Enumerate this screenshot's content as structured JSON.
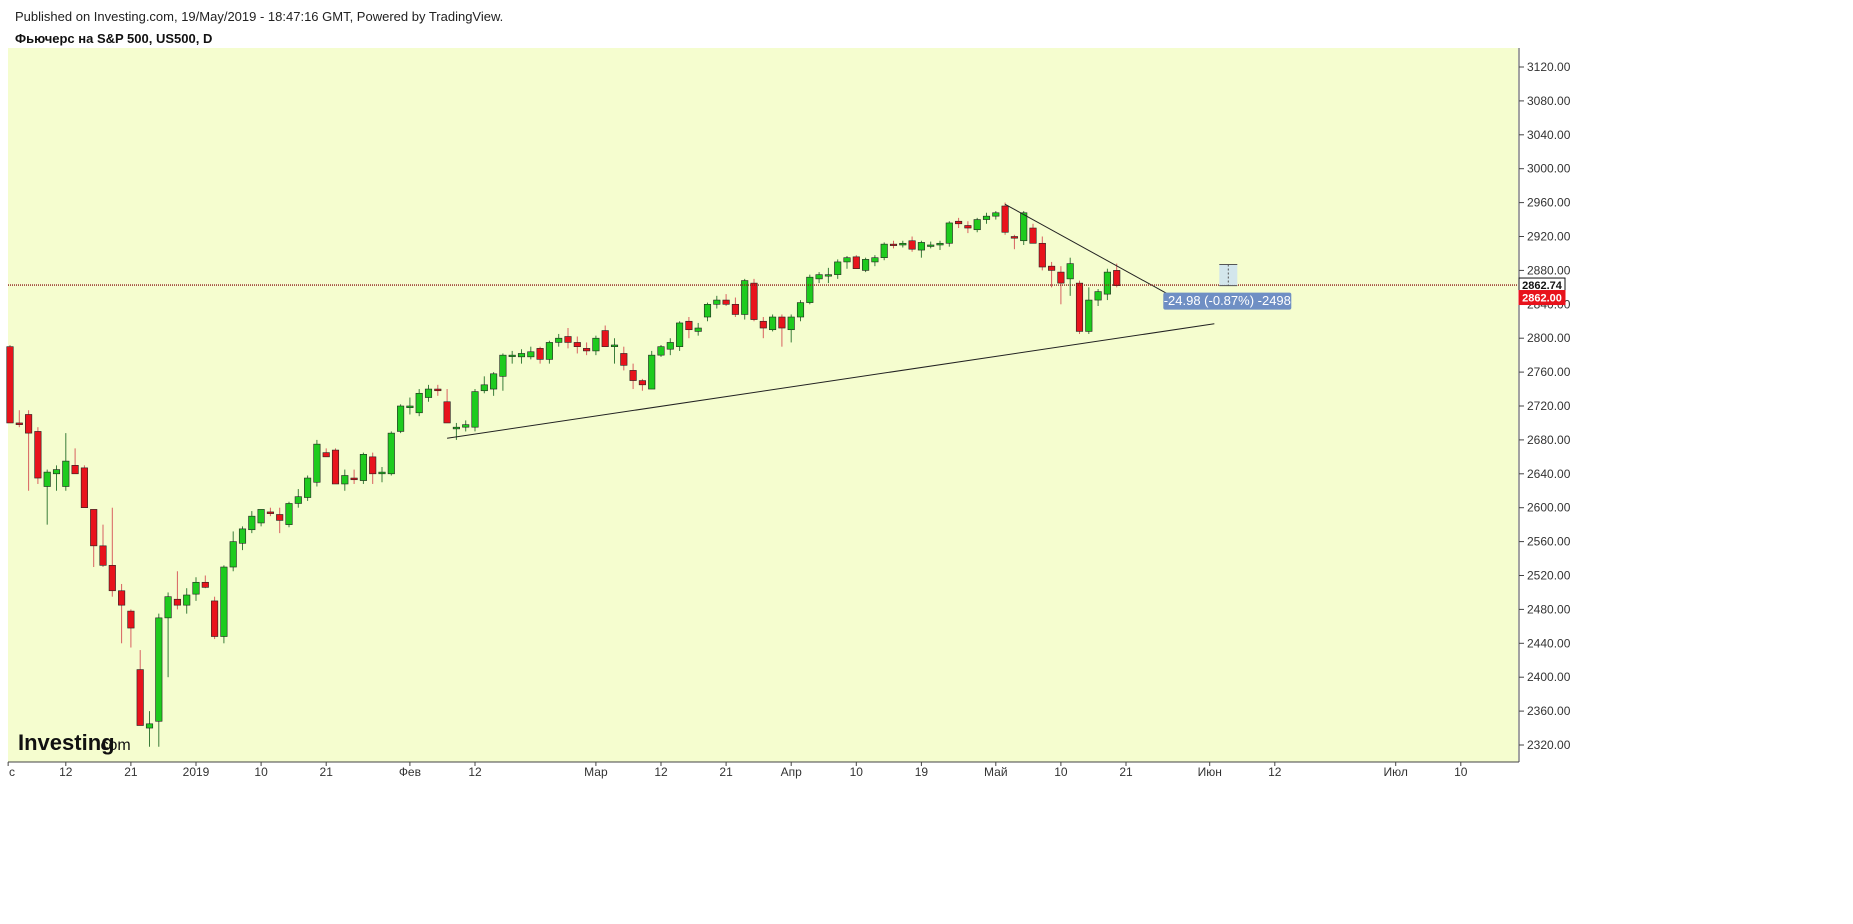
{
  "header": {
    "published": "Published on Investing.com, 19/May/2019 - 18:47:16 GMT, Powered by TradingView.",
    "title": "Фьючерс на S&P 500, US500, D"
  },
  "logo": {
    "main": "Investing",
    "suffix": ".com"
  },
  "colors": {
    "background": "#f5fdcf",
    "up": "#1ecb1e",
    "down": "#e8131c",
    "priceLine": "#8b1a1a",
    "measureLabel": "#6f8fc4"
  },
  "chart_data": {
    "type": "candlestick",
    "grid": false,
    "legend": "none",
    "ylim": [
      2305,
      3135
    ],
    "y_ticks": [
      3120,
      3080,
      3040,
      3000,
      2960,
      2920,
      2880,
      2840,
      2800,
      2760,
      2720,
      2680,
      2640,
      2600,
      2560,
      2520,
      2480,
      2440,
      2400,
      2360,
      2320
    ],
    "y_tick_labels": [
      "3120.00",
      "3080.00",
      "3040.00",
      "3000.00",
      "2960.00",
      "2920.00",
      "2880.00",
      "2840.00",
      "2800.00",
      "2760.00",
      "2720.00",
      "2680.00",
      "2640.00",
      "2600.00",
      "2560.00",
      "2520.00",
      "2480.00",
      "2440.00",
      "2400.00",
      "2360.00",
      "2320.00"
    ],
    "x_tick_labels": [
      {
        "label": "c",
        "bar": -0.2
      },
      {
        "label": "12",
        "bar": 6
      },
      {
        "label": "21",
        "bar": 13
      },
      {
        "label": "2019",
        "bar": 20
      },
      {
        "label": "10",
        "bar": 27
      },
      {
        "label": "21",
        "bar": 34
      },
      {
        "label": "Фев",
        "bar": 43
      },
      {
        "label": "12",
        "bar": 50
      },
      {
        "label": "Мар",
        "bar": 63
      },
      {
        "label": "12",
        "bar": 70
      },
      {
        "label": "21",
        "bar": 77
      },
      {
        "label": "Апр",
        "bar": 84
      },
      {
        "label": "10",
        "bar": 91
      },
      {
        "label": "19",
        "bar": 98
      },
      {
        "label": "Май",
        "bar": 106
      },
      {
        "label": "10",
        "bar": 113
      },
      {
        "label": "21",
        "bar": 120
      },
      {
        "label": "Июн",
        "bar": 129
      },
      {
        "label": "12",
        "bar": 136
      },
      {
        "label": "Июл",
        "bar": 149
      },
      {
        "label": "10",
        "bar": 156
      }
    ],
    "bars_per_day_estimate": "daily",
    "ohlc": [
      [
        2790,
        2792,
        2700,
        2700
      ],
      [
        2700,
        2715,
        2695,
        2698
      ],
      [
        2710,
        2715,
        2620,
        2688
      ],
      [
        2690,
        2695,
        2628,
        2635
      ],
      [
        2625,
        2645,
        2580,
        2642
      ],
      [
        2640,
        2650,
        2620,
        2645
      ],
      [
        2625,
        2688,
        2620,
        2655
      ],
      [
        2650,
        2670,
        2640,
        2640
      ],
      [
        2647,
        2650,
        2600,
        2600
      ],
      [
        2598,
        2598,
        2530,
        2555
      ],
      [
        2555,
        2580,
        2530,
        2532
      ],
      [
        2532,
        2600,
        2495,
        2502
      ],
      [
        2502,
        2510,
        2440,
        2485
      ],
      [
        2478,
        2480,
        2435,
        2458
      ],
      [
        2409,
        2432,
        2343,
        2343
      ],
      [
        2340,
        2360,
        2318,
        2345
      ],
      [
        2348,
        2475,
        2318,
        2470
      ],
      [
        2470,
        2500,
        2400,
        2495
      ],
      [
        2492,
        2525,
        2480,
        2485
      ],
      [
        2485,
        2505,
        2475,
        2497
      ],
      [
        2498,
        2518,
        2490,
        2512
      ],
      [
        2512,
        2520,
        2505,
        2506
      ],
      [
        2490,
        2495,
        2445,
        2448
      ],
      [
        2448,
        2532,
        2440,
        2530
      ],
      [
        2530,
        2572,
        2525,
        2560
      ],
      [
        2558,
        2578,
        2550,
        2575
      ],
      [
        2574,
        2596,
        2570,
        2590
      ],
      [
        2582,
        2598,
        2578,
        2598
      ],
      [
        2595,
        2600,
        2590,
        2593
      ],
      [
        2592,
        2600,
        2570,
        2585
      ],
      [
        2580,
        2607,
        2577,
        2605
      ],
      [
        2605,
        2622,
        2600,
        2613
      ],
      [
        2612,
        2638,
        2608,
        2635
      ],
      [
        2630,
        2680,
        2625,
        2675
      ],
      [
        2665,
        2670,
        2660,
        2660
      ],
      [
        2668,
        2670,
        2628,
        2628
      ],
      [
        2628,
        2645,
        2620,
        2638
      ],
      [
        2635,
        2645,
        2628,
        2633
      ],
      [
        2632,
        2665,
        2628,
        2663
      ],
      [
        2660,
        2665,
        2628,
        2640
      ],
      [
        2640,
        2648,
        2630,
        2642
      ],
      [
        2640,
        2690,
        2638,
        2688
      ],
      [
        2690,
        2722,
        2688,
        2720
      ],
      [
        2718,
        2730,
        2710,
        2720
      ],
      [
        2712,
        2740,
        2708,
        2735
      ],
      [
        2730,
        2745,
        2725,
        2740
      ],
      [
        2740,
        2745,
        2732,
        2738
      ],
      [
        2725,
        2740,
        2700,
        2700
      ],
      [
        2693,
        2700,
        2680,
        2695
      ],
      [
        2695,
        2703,
        2690,
        2698
      ],
      [
        2695,
        2740,
        2690,
        2737
      ],
      [
        2738,
        2755,
        2735,
        2745
      ],
      [
        2740,
        2760,
        2732,
        2758
      ],
      [
        2755,
        2782,
        2738,
        2780
      ],
      [
        2779,
        2785,
        2770,
        2780
      ],
      [
        2778,
        2787,
        2770,
        2782
      ],
      [
        2778,
        2790,
        2775,
        2784
      ],
      [
        2788,
        2790,
        2770,
        2775
      ],
      [
        2775,
        2797,
        2770,
        2795
      ],
      [
        2795,
        2805,
        2790,
        2800
      ],
      [
        2802,
        2812,
        2788,
        2795
      ],
      [
        2795,
        2802,
        2782,
        2790
      ],
      [
        2788,
        2795,
        2780,
        2785
      ],
      [
        2785,
        2803,
        2780,
        2800
      ],
      [
        2809,
        2815,
        2790,
        2790
      ],
      [
        2790,
        2800,
        2770,
        2792
      ],
      [
        2782,
        2790,
        2762,
        2768
      ],
      [
        2762,
        2770,
        2740,
        2750
      ],
      [
        2750,
        2752,
        2738,
        2745
      ],
      [
        2740,
        2785,
        2740,
        2780
      ],
      [
        2780,
        2792,
        2778,
        2790
      ],
      [
        2787,
        2800,
        2780,
        2795
      ],
      [
        2790,
        2820,
        2785,
        2818
      ],
      [
        2820,
        2825,
        2800,
        2810
      ],
      [
        2808,
        2818,
        2803,
        2812
      ],
      [
        2825,
        2842,
        2820,
        2840
      ],
      [
        2840,
        2850,
        2835,
        2845
      ],
      [
        2845,
        2852,
        2838,
        2840
      ],
      [
        2840,
        2848,
        2825,
        2828
      ],
      [
        2828,
        2870,
        2822,
        2868
      ],
      [
        2865,
        2870,
        2820,
        2822
      ],
      [
        2820,
        2825,
        2800,
        2812
      ],
      [
        2810,
        2828,
        2808,
        2825
      ],
      [
        2825,
        2828,
        2790,
        2812
      ],
      [
        2810,
        2828,
        2795,
        2825
      ],
      [
        2825,
        2845,
        2820,
        2842
      ],
      [
        2842,
        2875,
        2840,
        2872
      ],
      [
        2870,
        2878,
        2865,
        2875
      ],
      [
        2875,
        2883,
        2865,
        2875
      ],
      [
        2875,
        2893,
        2870,
        2890
      ],
      [
        2890,
        2897,
        2882,
        2895
      ],
      [
        2896,
        2898,
        2884,
        2882
      ],
      [
        2880,
        2895,
        2878,
        2893
      ],
      [
        2890,
        2898,
        2885,
        2895
      ],
      [
        2895,
        2913,
        2892,
        2911
      ],
      [
        2911,
        2915,
        2906,
        2910
      ],
      [
        2910,
        2915,
        2907,
        2912
      ],
      [
        2915,
        2920,
        2902,
        2905
      ],
      [
        2904,
        2915,
        2895,
        2913
      ],
      [
        2910,
        2914,
        2906,
        2910
      ],
      [
        2910,
        2915,
        2904,
        2912
      ],
      [
        2912,
        2938,
        2908,
        2936
      ],
      [
        2938,
        2942,
        2930,
        2935
      ],
      [
        2933,
        2938,
        2924,
        2930
      ],
      [
        2928,
        2942,
        2925,
        2940
      ],
      [
        2940,
        2948,
        2935,
        2944
      ],
      [
        2944,
        2950,
        2940,
        2948
      ],
      [
        2956,
        2960,
        2922,
        2925
      ],
      [
        2920,
        2922,
        2905,
        2918
      ],
      [
        2915,
        2950,
        2910,
        2948
      ],
      [
        2930,
        2935,
        2912,
        2912
      ],
      [
        2912,
        2920,
        2880,
        2884
      ],
      [
        2885,
        2890,
        2860,
        2880
      ],
      [
        2878,
        2885,
        2840,
        2865
      ],
      [
        2870,
        2895,
        2850,
        2888
      ],
      [
        2865,
        2868,
        2805,
        2808
      ],
      [
        2808,
        2860,
        2805,
        2845
      ],
      [
        2845,
        2858,
        2838,
        2855
      ],
      [
        2852,
        2882,
        2845,
        2878
      ],
      [
        2880,
        2888,
        2860,
        2862
      ]
    ],
    "trendlines": [
      {
        "name": "support",
        "from": {
          "bar": 47,
          "price": 2682
        },
        "to": {
          "bar": 129.5,
          "price": 2817
        }
      },
      {
        "name": "resistance",
        "from": {
          "bar": 107,
          "price": 2958
        },
        "to": {
          "bar": 126.5,
          "price": 2840
        }
      }
    ],
    "current_price_line": 2862.74,
    "price_tags": [
      {
        "value": "2862.74",
        "price": 2862.74,
        "bg": "#ffffff",
        "fg": "#111111",
        "border": "#111111"
      },
      {
        "value": "2862.00",
        "price": 2848,
        "bg": "#e8131c",
        "fg": "#ffffff",
        "border": "#e8131c"
      }
    ],
    "measurement": {
      "text": "-24.98 (-0.87%) -2498",
      "start": {
        "bar": 131,
        "price": 2887
      },
      "end": {
        "bar": 131,
        "price": 2862
      }
    }
  }
}
